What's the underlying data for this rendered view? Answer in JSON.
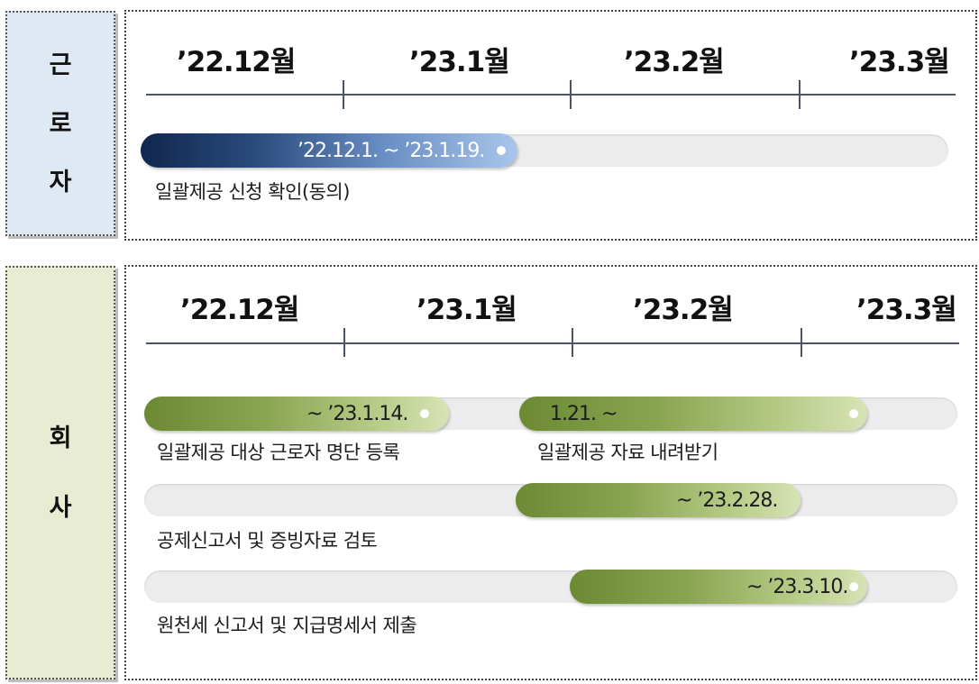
{
  "worker": {
    "side_label": [
      "근",
      "로",
      "자"
    ],
    "months": [
      "’22.12월",
      "’23.1월",
      "’23.2월",
      "’23.3월"
    ],
    "tasks": [
      {
        "bar_text": "’22.12.1. ~ ’23.1.19.",
        "label": "일괄제공 신청 확인(동의)"
      }
    ]
  },
  "company": {
    "side_label": [
      "회",
      "사"
    ],
    "months": [
      "’22.12월",
      "’23.1월",
      "’23.2월",
      "’23.3월"
    ],
    "tasks": [
      {
        "bar_text": "~ ’23.1.14.",
        "label": "일괄제공 대상 근로자 명단 등록"
      },
      {
        "bar_text": "1.21. ~",
        "label": "일괄제공 자료 내려받기"
      },
      {
        "bar_text": "~ ’23.2.28.",
        "label": "공제신고서 및 증빙자료 검토"
      },
      {
        "bar_text": "~ ’23.3.10.",
        "label": "원천세 신고서 및 지급명세서 제출"
      }
    ]
  },
  "colors": {
    "worker_side_bg": "#dfe9f4",
    "company_side_bg": "#e8ecd3",
    "blue_bar_start": "#10274e",
    "blue_bar_end": "#a9c5ea",
    "green_bar_start": "#6b8a32",
    "green_bar_end": "#d7e3b5",
    "track": "#ececec"
  }
}
